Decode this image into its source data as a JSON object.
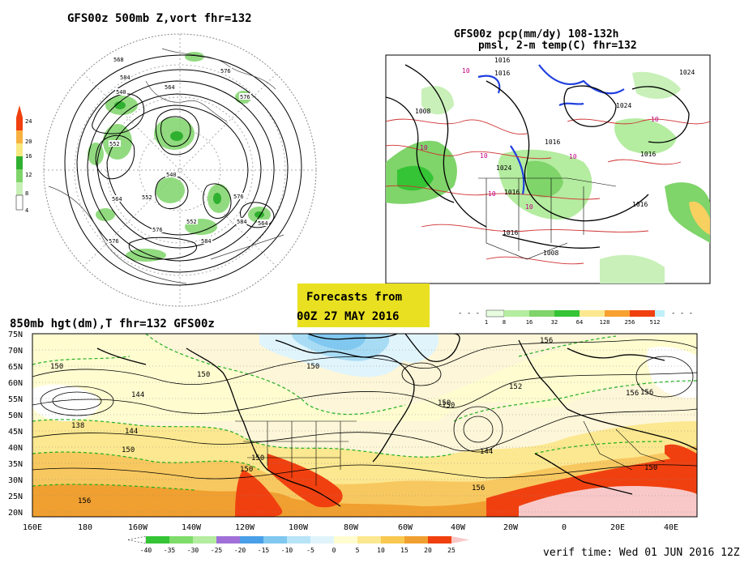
{
  "panel_500mb": {
    "title": "GFS00z  500mb Z,vort   fhr=132",
    "colorbar_ticks": [
      "24",
      "20",
      "16",
      "12",
      "8",
      "4"
    ],
    "contour_labels": [
      "568",
      "576",
      "584",
      "540",
      "552",
      "564",
      "576",
      "540",
      "552",
      "576",
      "584",
      "564",
      "576",
      "552",
      "584",
      "564",
      "576"
    ]
  },
  "panel_precip": {
    "title_line1": "GFS00z pcp(mm/dy) 108-132h",
    "title_line2": "pmsl, 2-m temp(C)  fhr=132",
    "pressure_labels": [
      "1016",
      "1016",
      "1008",
      "1024",
      "1024",
      "1016",
      "1016",
      "1024",
      "1016",
      "1016",
      "1016",
      "1008"
    ],
    "temp_labels": [
      "10",
      "10",
      "10",
      "10",
      "10",
      "10",
      "10"
    ],
    "colorbar_ticks": [
      "1",
      "8",
      "16",
      "32",
      "64",
      "128",
      "256",
      "512"
    ]
  },
  "banner": {
    "line1": "Forecasts from",
    "line2": "00Z 27 MAY 2016"
  },
  "panel_850mb": {
    "title": "850mb hgt(dm),T  fhr=132 GFS00z",
    "lat_labels": [
      "75N",
      "70N",
      "65N",
      "60N",
      "55N",
      "50N",
      "45N",
      "40N",
      "35N",
      "30N",
      "25N",
      "20N"
    ],
    "lon_labels": [
      "160E",
      "180",
      "160W",
      "140W",
      "120W",
      "100W",
      "80W",
      "60W",
      "40W",
      "20W",
      "0",
      "20E",
      "40E"
    ],
    "contour_labels": [
      "150",
      "144",
      "150",
      "150",
      "156",
      "138",
      "144",
      "150",
      "150",
      "150",
      "156",
      "150",
      "144",
      "156",
      "150",
      "156",
      "150",
      "156",
      "152"
    ],
    "colorbar_ticks": [
      "-40",
      "-35",
      "-30",
      "-25",
      "-20",
      "-15",
      "-10",
      "-5",
      "0",
      "5",
      "10",
      "15",
      "20",
      "25"
    ],
    "colorbar_colors": [
      "#35c435",
      "#7fdc6a",
      "#b4eca0",
      "#a070d8",
      "#4aa0e8",
      "#80c8f0",
      "#b8e4f8",
      "#e0f4fc",
      "#fffcd0",
      "#fce890",
      "#f8c850",
      "#f0a030",
      "#f04010"
    ]
  },
  "verif": "verif time: Wed 01 JUN 2016 12Z",
  "colors": {
    "banner": "#e8e020",
    "ocean_850": "#ffffff",
    "warm": "#f8c060",
    "hot": "#f04010"
  }
}
